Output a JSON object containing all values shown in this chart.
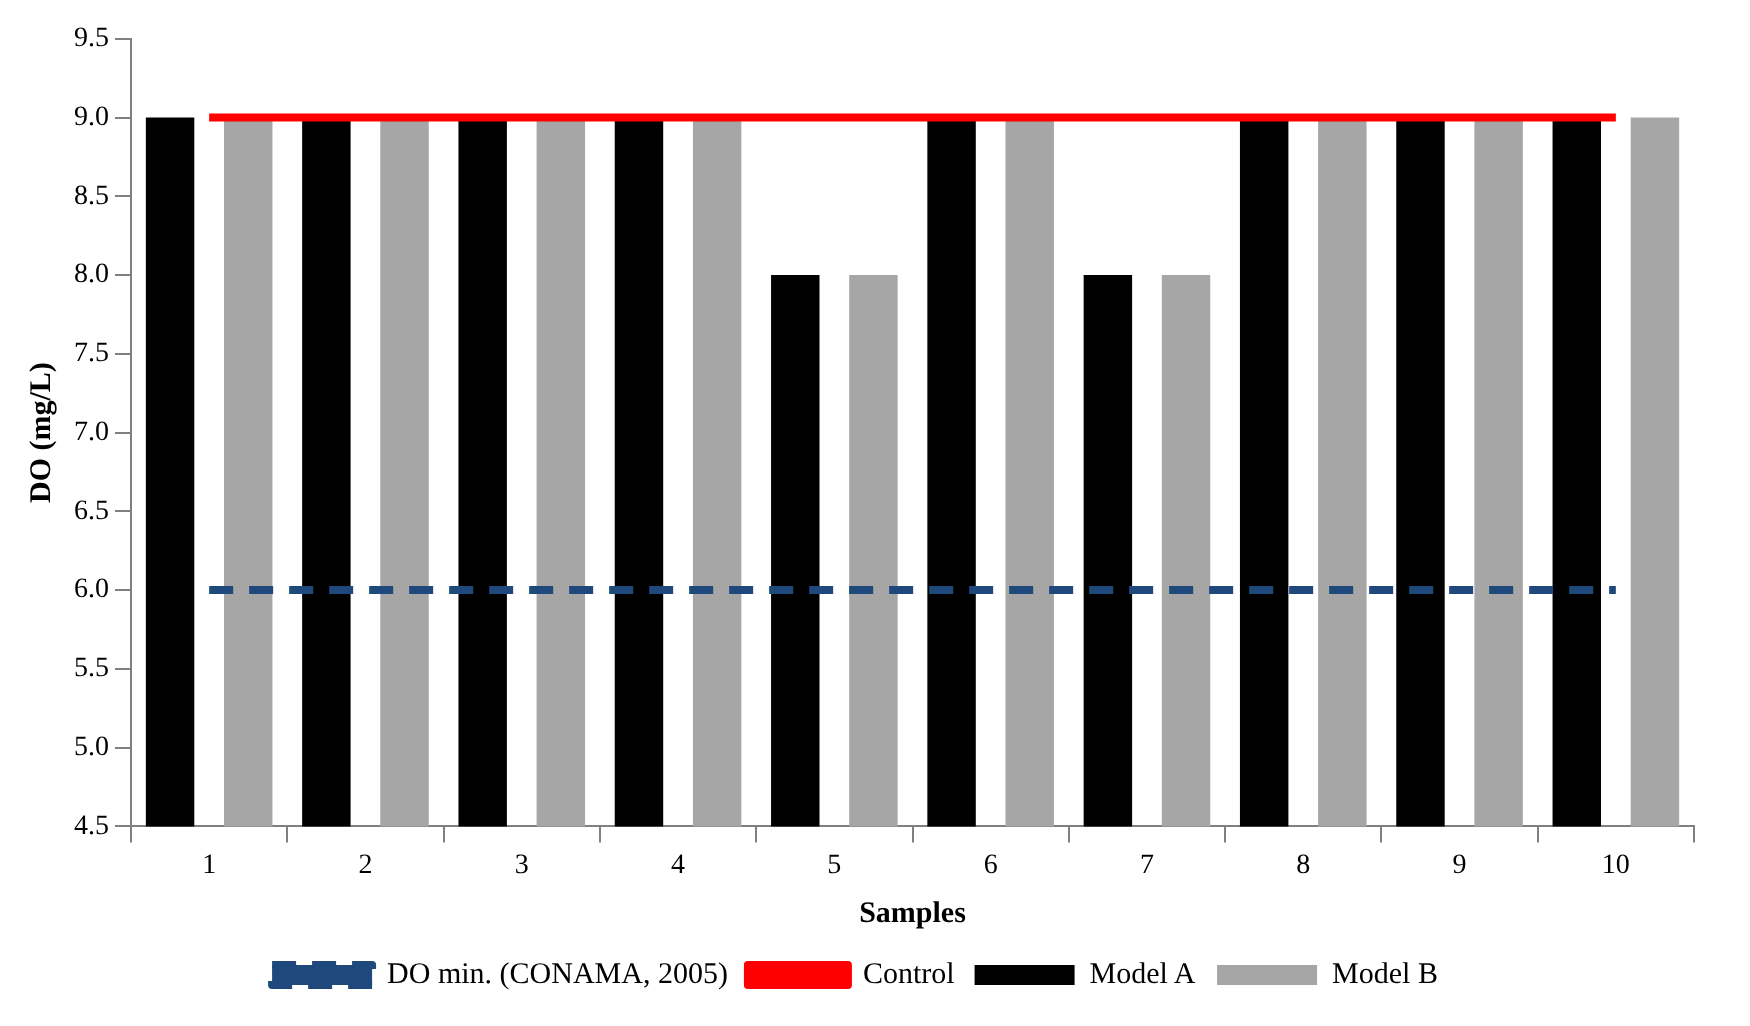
{
  "chart_data": {
    "type": "bar",
    "xlabel": "Samples",
    "ylabel": "DO (mg/L)",
    "categories": [
      "1",
      "2",
      "3",
      "4",
      "5",
      "6",
      "7",
      "8",
      "9",
      "10"
    ],
    "series": [
      {
        "name": "Model A",
        "color": "#000000",
        "values": [
          9,
          9,
          9,
          9,
          8,
          9,
          8,
          9,
          9,
          9
        ]
      },
      {
        "name": "Model B",
        "color": "#a6a6a6",
        "values": [
          9,
          9,
          9,
          9,
          8,
          9,
          8,
          9,
          9,
          9
        ]
      },
      {
        "name": "DO min. (CONAMA, 2005)",
        "type": "line",
        "color": "#1f497d",
        "line_style": "dashed",
        "marker": "none",
        "values": [
          6,
          6,
          6,
          6,
          6,
          6,
          6,
          6,
          6,
          6
        ]
      },
      {
        "name": "Control",
        "type": "line",
        "color": "#ff0000",
        "line_style": "solid",
        "marker": "none",
        "values": [
          9,
          9,
          9,
          9,
          9,
          9,
          9,
          9,
          9,
          9
        ]
      }
    ],
    "ylim": [
      4.5,
      9.5
    ],
    "yticks": [
      4.5,
      {
        "value": 5,
        "label": "5.0"
      },
      5.5,
      {
        "value": 6,
        "label": "6.0"
      },
      6.5,
      {
        "value": 7,
        "label": "7.0"
      },
      7.5,
      {
        "value": 8,
        "label": "8.0"
      },
      8.5,
      {
        "value": 9,
        "label": "9.0"
      },
      9.5
    ],
    "grid": false,
    "legend": "bottom"
  }
}
